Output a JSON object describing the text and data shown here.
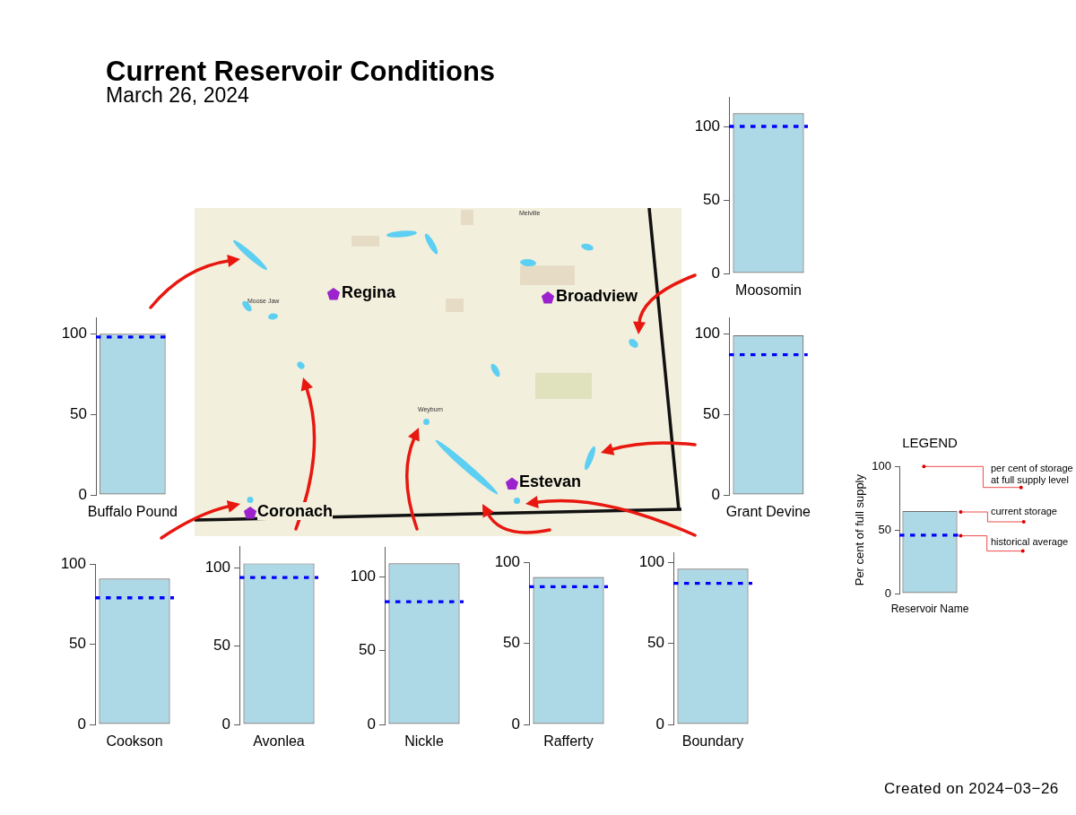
{
  "chart_data": [
    {
      "type": "other",
      "title": "Current Reservoir Conditions",
      "subtitle": "March 26, 2024",
      "annotations": [
        "Created on 2024−03−26"
      ]
    },
    {
      "type": "bar",
      "categories": [
        "Moosomin"
      ],
      "values": [
        109
      ],
      "color": "#add8e6",
      "ylim": [
        0,
        120
      ],
      "yticks": [
        0,
        50,
        100
      ],
      "ref_lines": [
        {
          "axis": "y",
          "value": 100,
          "color": "#0000ff",
          "line_style": "dashed"
        }
      ]
    },
    {
      "type": "other",
      "annotations": [
        "Regina",
        "Broadview",
        "Estevan",
        "Coronach",
        "Moose Jaw",
        "Weyburn",
        "Melville"
      ]
    },
    {
      "type": "bar",
      "categories": [
        "Buffalo Pound"
      ],
      "values": [
        100
      ],
      "color": "#add8e6",
      "ylim": [
        0,
        110
      ],
      "yticks": [
        0,
        50,
        100
      ],
      "ref_lines": [
        {
          "axis": "y",
          "value": 98,
          "color": "#0000ff",
          "line_style": "dashed"
        }
      ]
    },
    {
      "type": "bar",
      "categories": [
        "Grant Devine"
      ],
      "values": [
        99
      ],
      "color": "#add8e6",
      "ylim": [
        0,
        110
      ],
      "yticks": [
        0,
        50,
        100
      ],
      "ref_lines": [
        {
          "axis": "y",
          "value": 87,
          "color": "#0000ff",
          "line_style": "dashed"
        }
      ]
    },
    {
      "type": "bar",
      "title": "LEGEND",
      "ylabel": "Per cent of full supply",
      "categories": [
        "Reservoir Name"
      ],
      "values": [
        65
      ],
      "color": "#add8e6",
      "ylim": [
        0,
        100
      ],
      "yticks": [
        0,
        50,
        100
      ],
      "ref_lines": [
        {
          "axis": "y",
          "value": 46,
          "color": "#0000ff",
          "line_style": "dashed"
        }
      ],
      "annotations": [
        "per cent of storage at full supply level",
        "current storage",
        "historical average"
      ]
    },
    {
      "type": "bar",
      "categories": [
        "Cookson"
      ],
      "values": [
        91
      ],
      "color": "#add8e6",
      "ylim": [
        0,
        100
      ],
      "yticks": [
        0,
        50,
        100
      ],
      "ref_lines": [
        {
          "axis": "y",
          "value": 79,
          "color": "#0000ff",
          "line_style": "dashed"
        }
      ]
    },
    {
      "type": "bar",
      "categories": [
        "Avonlea"
      ],
      "values": [
        103
      ],
      "color": "#add8e6",
      "ylim": [
        0,
        114
      ],
      "yticks": [
        0,
        50,
        100
      ],
      "ref_lines": [
        {
          "axis": "y",
          "value": 94,
          "color": "#0000ff",
          "line_style": "dashed"
        }
      ]
    },
    {
      "type": "bar",
      "categories": [
        "Nickle"
      ],
      "values": [
        109
      ],
      "color": "#add8e6",
      "ylim": [
        0,
        120
      ],
      "yticks": [
        0,
        50,
        100
      ],
      "ref_lines": [
        {
          "axis": "y",
          "value": 83,
          "color": "#0000ff",
          "line_style": "dashed"
        }
      ]
    },
    {
      "type": "bar",
      "categories": [
        "Rafferty"
      ],
      "values": [
        91
      ],
      "color": "#add8e6",
      "ylim": [
        0,
        100
      ],
      "yticks": [
        0,
        50,
        100
      ],
      "ref_lines": [
        {
          "axis": "y",
          "value": 85,
          "color": "#0000ff",
          "line_style": "dashed"
        }
      ]
    },
    {
      "type": "bar",
      "categories": [
        "Boundary"
      ],
      "values": [
        96
      ],
      "color": "#add8e6",
      "ylim": [
        0,
        106
      ],
      "yticks": [
        0,
        50,
        100
      ],
      "ref_lines": [
        {
          "axis": "y",
          "value": 87,
          "color": "#0000ff",
          "line_style": "dashed"
        }
      ]
    }
  ]
}
